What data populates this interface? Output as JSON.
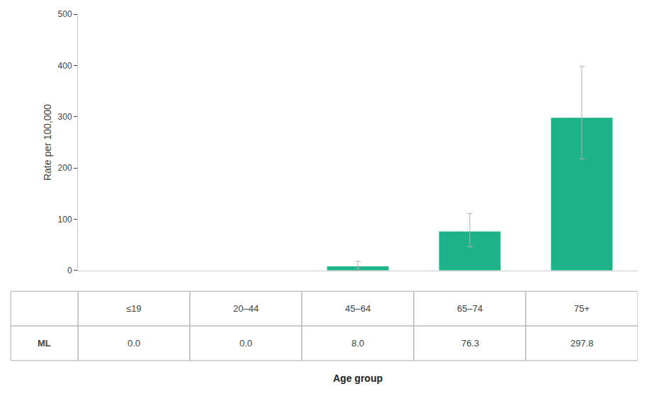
{
  "chart_data": {
    "type": "bar",
    "categories": [
      "≤19",
      "20–44",
      "45–64",
      "65–74",
      "75+"
    ],
    "values": [
      0.0,
      0.0,
      8.0,
      76.3,
      297.8
    ],
    "errors_upper": [
      0.0,
      0.0,
      10.0,
      35.0,
      100.0
    ],
    "errors_lower": [
      0.0,
      0.0,
      4.0,
      30.0,
      80.0
    ],
    "value_labels": [
      "0.0",
      "0.0",
      "8.0",
      "76.3",
      "297.8"
    ],
    "row_label": "ML",
    "color": "#1db389",
    "error_color": "#b0b0b0",
    "ylabel": "Rate per 100,000",
    "xlabel": "Age group",
    "ylim": [
      0,
      500
    ],
    "yticks": [
      0,
      100,
      200,
      300,
      400,
      500
    ],
    "tick_labels": "y"
  }
}
